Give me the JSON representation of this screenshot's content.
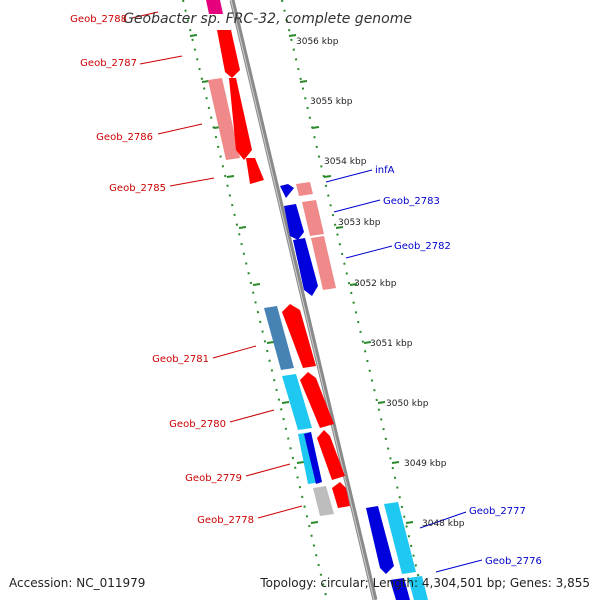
{
  "title": "Geobacter sp. FRC-32, complete genome",
  "footer": {
    "accession": "Accession: NC_011979",
    "topology": "Topology: circular; Length: 4,304,501 bp; Genes: 3,855"
  },
  "colors": {
    "backbone": "#8a8a8a",
    "tick": "#2a8a2a",
    "label_reverse": "#cc0000",
    "label_forward": "#0000cc",
    "red": "#ff0000",
    "light_red": "#f08a8a",
    "blue": "#0000dd",
    "steel_blue": "#4682b4",
    "cyan": "#1ec8f0",
    "gray": "#bdbdbd"
  },
  "scale": {
    "unit": "kbp",
    "ticks": [
      "3056 kbp",
      "3055 kbp",
      "3054 kbp",
      "3053 kbp",
      "3052 kbp",
      "3051 kbp",
      "3050 kbp",
      "3049 kbp",
      "3048 kbp"
    ]
  },
  "genes": [
    {
      "label": "Geob_2788",
      "strand": "reverse",
      "color": "pink"
    },
    {
      "label": "Geob_2787",
      "strand": "reverse",
      "color": "red"
    },
    {
      "label": "Geob_2786",
      "strand": "reverse",
      "color": "light_red"
    },
    {
      "label": "Geob_2785",
      "strand": "reverse",
      "color": "red"
    },
    {
      "label": "infA",
      "strand": "forward",
      "color": "blue"
    },
    {
      "label": "Geob_2783",
      "strand": "forward",
      "color": "blue"
    },
    {
      "label": "Geob_2782",
      "strand": "forward",
      "color": "blue"
    },
    {
      "label": "Geob_2781",
      "strand": "reverse",
      "color": "steel_blue"
    },
    {
      "label": "Geob_2780",
      "strand": "reverse",
      "color": "cyan"
    },
    {
      "label": "Geob_2779",
      "strand": "reverse",
      "color": "cyan"
    },
    {
      "label": "Geob_2778",
      "strand": "reverse",
      "color": "gray"
    },
    {
      "label": "Geob_2777",
      "strand": "forward",
      "color": "blue"
    },
    {
      "label": "Geob_2776",
      "strand": "forward",
      "color": "cyan"
    }
  ]
}
